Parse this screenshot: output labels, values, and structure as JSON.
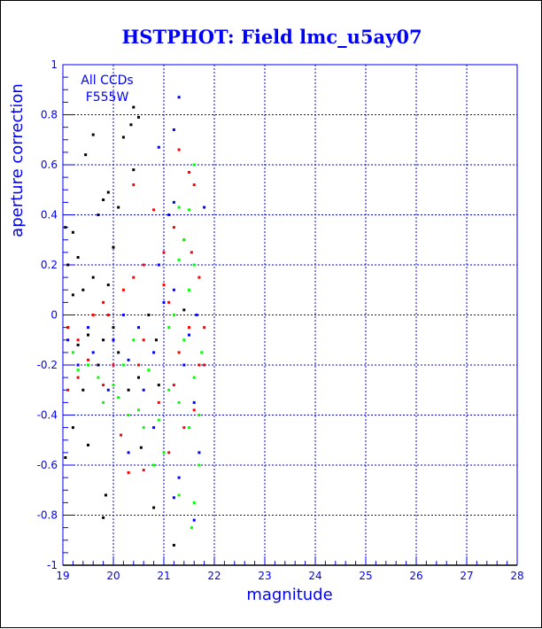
{
  "chart_data": {
    "type": "scatter",
    "title": "HSTPHOT: Field lmc_u5ay07",
    "xlabel": "magnitude",
    "ylabel": "aperture correction",
    "xlim": [
      19,
      28
    ],
    "ylim": [
      -1,
      1
    ],
    "xticks": [
      "19",
      "20",
      "21",
      "22",
      "23",
      "24",
      "25",
      "26",
      "27",
      "28"
    ],
    "yticks": [
      "-1",
      "-0.8",
      "-0.6",
      "-0.4",
      "-0.2",
      "0",
      "0.2",
      "0.4",
      "0.6",
      "0.8",
      "1"
    ],
    "grid": true,
    "annotation": [
      "All CCDs",
      "F555W"
    ],
    "colors": {
      "text": "#0000ff",
      "grid": "#0000ff"
    },
    "series": [
      {
        "color": "#000000",
        "points": [
          [
            19.05,
            0.35
          ],
          [
            19.1,
            0.2
          ],
          [
            19.2,
            0.33
          ],
          [
            19.3,
            0.23
          ],
          [
            19.45,
            0.64
          ],
          [
            19.6,
            0.72
          ],
          [
            19.8,
            0.46
          ],
          [
            19.9,
            0.49
          ],
          [
            20.2,
            0.71
          ],
          [
            20.35,
            0.76
          ],
          [
            20.4,
            0.83
          ],
          [
            20.5,
            0.79
          ],
          [
            20.4,
            0.58
          ],
          [
            20.1,
            0.43
          ],
          [
            19.7,
            0.4
          ],
          [
            20.0,
            0.27
          ],
          [
            19.2,
            0.08
          ],
          [
            19.4,
            0.1
          ],
          [
            19.6,
            0.15
          ],
          [
            19.9,
            0.12
          ],
          [
            19.1,
            -0.05
          ],
          [
            19.3,
            -0.12
          ],
          [
            19.5,
            -0.08
          ],
          [
            19.7,
            -0.2
          ],
          [
            19.8,
            -0.1
          ],
          [
            20.1,
            -0.15
          ],
          [
            20.3,
            -0.3
          ],
          [
            20.5,
            -0.25
          ],
          [
            19.2,
            -0.45
          ],
          [
            19.4,
            -0.3
          ],
          [
            19.5,
            -0.52
          ],
          [
            19.85,
            -0.72
          ],
          [
            19.8,
            -0.81
          ],
          [
            20.8,
            -0.77
          ],
          [
            20.55,
            -0.53
          ],
          [
            19.05,
            -0.57
          ],
          [
            21.2,
            -0.92
          ],
          [
            20.9,
            -0.28
          ],
          [
            20.0,
            -0.05
          ],
          [
            20.7,
            0.0
          ],
          [
            21.4,
            0.02
          ],
          [
            20.85,
            -0.1
          ]
        ]
      },
      {
        "color": "#ff0000",
        "points": [
          [
            19.1,
            -0.05
          ],
          [
            19.3,
            -0.1
          ],
          [
            19.5,
            -0.18
          ],
          [
            19.6,
            0.0
          ],
          [
            19.8,
            0.05
          ],
          [
            20.0,
            -0.2
          ],
          [
            20.2,
            0.1
          ],
          [
            20.4,
            0.15
          ],
          [
            20.4,
            0.52
          ],
          [
            20.6,
            0.2
          ],
          [
            20.8,
            0.42
          ],
          [
            21.3,
            0.66
          ],
          [
            21.5,
            0.57
          ],
          [
            21.6,
            0.52
          ],
          [
            21.2,
            0.35
          ],
          [
            21.4,
            0.3
          ],
          [
            21.0,
            0.25
          ],
          [
            21.7,
            0.15
          ],
          [
            21.1,
            0.05
          ],
          [
            21.5,
            -0.05
          ],
          [
            21.3,
            -0.15
          ],
          [
            21.7,
            -0.2
          ],
          [
            21.8,
            -0.2
          ],
          [
            20.9,
            -0.35
          ],
          [
            21.4,
            -0.45
          ],
          [
            21.6,
            -0.38
          ],
          [
            21.1,
            -0.55
          ],
          [
            20.6,
            -0.62
          ],
          [
            20.3,
            -0.63
          ],
          [
            19.8,
            -0.28
          ],
          [
            19.3,
            -0.25
          ],
          [
            19.1,
            -0.3
          ],
          [
            20.15,
            -0.48
          ],
          [
            21.0,
            0.12
          ],
          [
            20.6,
            -0.1
          ],
          [
            19.9,
            0.0
          ],
          [
            21.55,
            0.25
          ],
          [
            21.2,
            -0.28
          ],
          [
            20.5,
            -0.2
          ],
          [
            21.8,
            -0.05
          ]
        ]
      },
      {
        "color": "#00ff00",
        "points": [
          [
            19.3,
            -0.22
          ],
          [
            19.5,
            -0.2
          ],
          [
            19.7,
            -0.25
          ],
          [
            19.8,
            -0.35
          ],
          [
            20.0,
            -0.28
          ],
          [
            20.1,
            -0.33
          ],
          [
            20.3,
            -0.4
          ],
          [
            20.5,
            -0.38
          ],
          [
            20.7,
            -0.22
          ],
          [
            20.9,
            -0.42
          ],
          [
            21.1,
            -0.3
          ],
          [
            21.3,
            -0.35
          ],
          [
            21.5,
            -0.45
          ],
          [
            21.7,
            -0.4
          ],
          [
            21.6,
            -0.25
          ],
          [
            21.4,
            -0.1
          ],
          [
            21.2,
            0.0
          ],
          [
            21.5,
            0.1
          ],
          [
            21.6,
            0.2
          ],
          [
            21.3,
            0.22
          ],
          [
            21.5,
            0.42
          ],
          [
            21.6,
            0.6
          ],
          [
            21.3,
            0.43
          ],
          [
            21.7,
            -0.6
          ],
          [
            21.6,
            -0.75
          ],
          [
            21.55,
            -0.85
          ],
          [
            21.3,
            -0.72
          ],
          [
            21.0,
            -0.55
          ],
          [
            20.8,
            -0.6
          ],
          [
            20.6,
            -0.45
          ],
          [
            19.2,
            -0.15
          ],
          [
            21.75,
            -0.15
          ],
          [
            20.4,
            -0.1
          ],
          [
            21.1,
            -0.05
          ],
          [
            20.2,
            -0.2
          ],
          [
            21.4,
            0.3
          ]
        ]
      },
      {
        "color": "#0000ff",
        "points": [
          [
            21.3,
            0.87
          ],
          [
            21.2,
            0.74
          ],
          [
            20.9,
            0.67
          ],
          [
            21.2,
            0.45
          ],
          [
            21.1,
            0.4
          ],
          [
            21.8,
            0.43
          ],
          [
            20.9,
            0.2
          ],
          [
            21.2,
            0.1
          ],
          [
            21.0,
            0.05
          ],
          [
            20.5,
            -0.05
          ],
          [
            20.2,
            0.0
          ],
          [
            19.6,
            -0.15
          ],
          [
            19.3,
            -0.2
          ],
          [
            19.1,
            -0.1
          ],
          [
            20.3,
            -0.18
          ],
          [
            20.6,
            -0.3
          ],
          [
            20.8,
            -0.45
          ],
          [
            21.4,
            -0.2
          ],
          [
            21.6,
            -0.35
          ],
          [
            21.7,
            -0.55
          ],
          [
            21.3,
            -0.65
          ],
          [
            21.2,
            -0.73
          ],
          [
            21.6,
            -0.82
          ],
          [
            20.3,
            -0.55
          ],
          [
            19.9,
            -0.3
          ],
          [
            21.5,
            -0.08
          ],
          [
            20.8,
            -0.15
          ],
          [
            19.5,
            -0.05
          ],
          [
            20.0,
            -0.1
          ],
          [
            21.65,
            0.0
          ]
        ]
      }
    ]
  }
}
